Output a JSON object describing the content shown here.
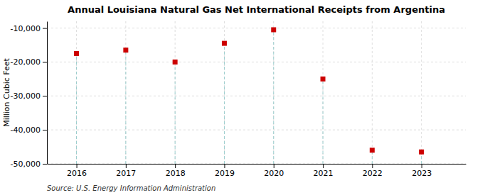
{
  "chart_data": {
    "type": "scatter",
    "title": "Annual Louisiana Natural Gas Net International Receipts from Argentina",
    "ylabel": "Million Cubic Feet",
    "annotations": [
      "Source: U.S. Energy Information Administration"
    ],
    "x": [
      2016,
      2017,
      2018,
      2019,
      2020,
      2021,
      2022,
      2023
    ],
    "values": [
      -17500,
      -16500,
      -20000,
      -14500,
      -10500,
      -25000,
      -46000,
      -46500
    ],
    "color": "#cc0000",
    "marker": "square",
    "xlim": [
      2015.4,
      2023.9
    ],
    "xticks": [
      2016,
      2017,
      2018,
      2019,
      2020,
      2021,
      2022,
      2023
    ],
    "ylim": [
      -50000,
      -8000
    ],
    "yticks": [
      {
        "value": -50000,
        "label": "-50,000"
      },
      {
        "value": -40000,
        "label": "-40,000"
      },
      {
        "value": -30000,
        "label": "-30,000"
      },
      {
        "value": -20000,
        "label": "-20,000"
      },
      {
        "value": -10000,
        "label": "-10,000"
      }
    ],
    "grid": true
  }
}
